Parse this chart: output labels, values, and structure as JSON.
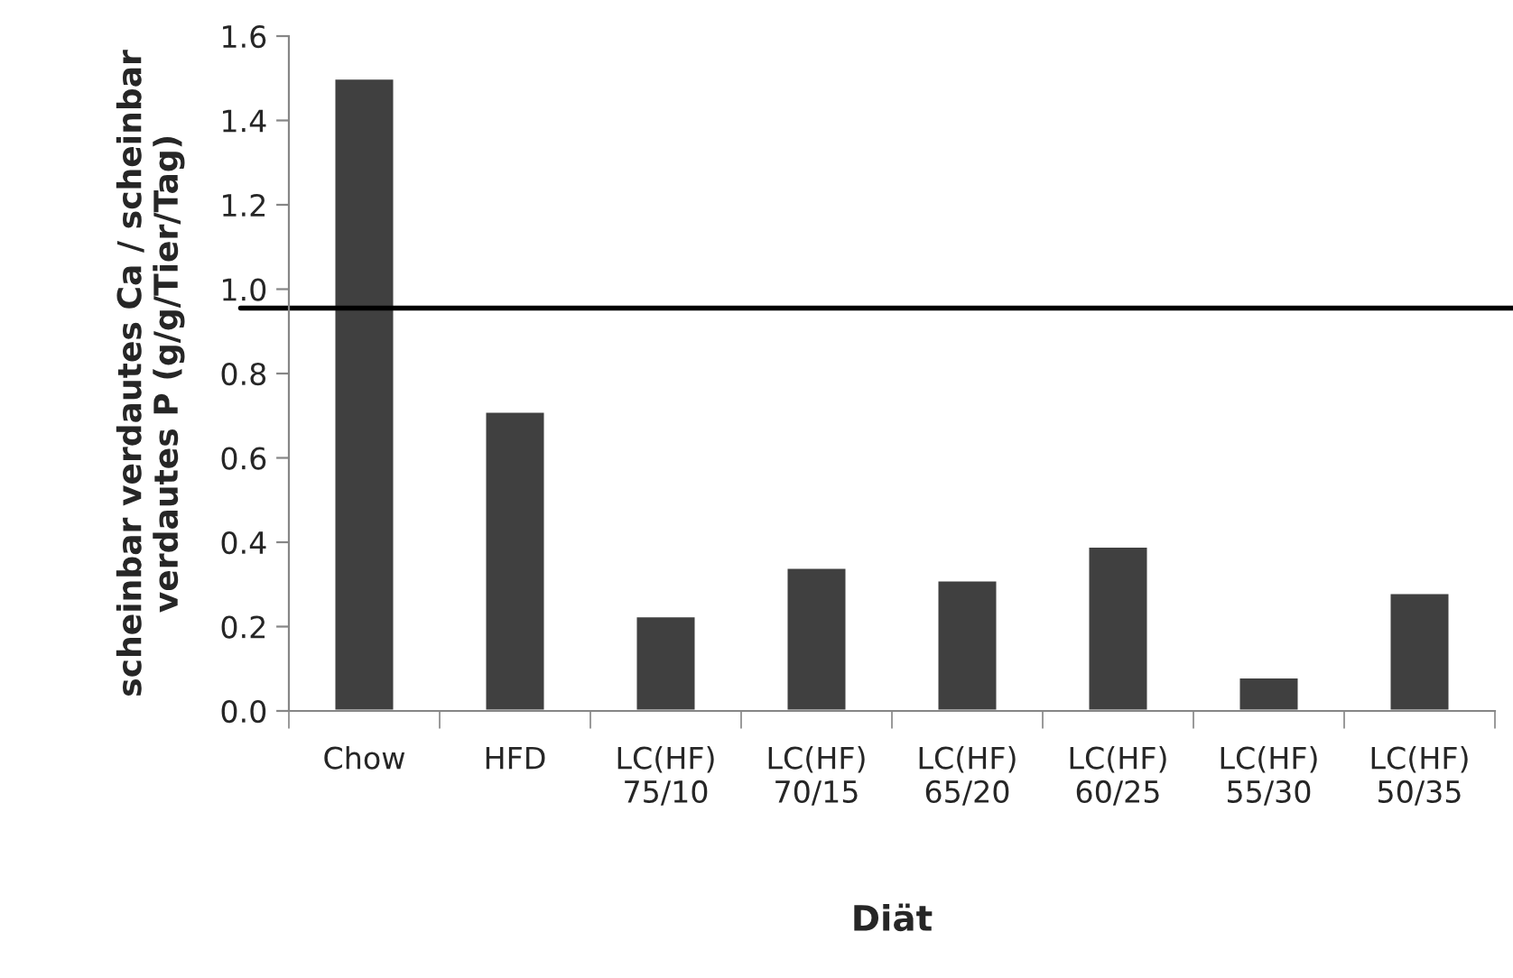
{
  "chart_data": {
    "type": "bar",
    "categories": [
      "Chow",
      "HFD",
      "LC(HF)\n75/10",
      "LC(HF)\n70/15",
      "LC(HF)\n65/20",
      "LC(HF)\n60/25",
      "LC(HF)\n55/30",
      "LC(HF)\n50/35"
    ],
    "values": [
      1.5,
      0.71,
      0.225,
      0.34,
      0.31,
      0.39,
      0.08,
      0.28
    ],
    "color": "#404040",
    "xlabel": "Diät",
    "ylabel": "scheinbar verdautes Ca / scheinbar\nverdautes P (g/g/Tier/Tag)",
    "ylim": [
      0,
      1.6
    ],
    "yticks": [
      {
        "value": 0,
        "label": "0.0"
      },
      {
        "value": 0.2,
        "label": "0.2"
      },
      {
        "value": 0.4,
        "label": "0.4"
      },
      {
        "value": 0.6,
        "label": "0.6"
      },
      {
        "value": 0.8,
        "label": "0.8"
      },
      {
        "value": 1.0,
        "label": "1.0"
      },
      {
        "value": 1.2,
        "label": "1.2"
      },
      {
        "value": 1.4,
        "label": "1.4"
      },
      {
        "value": 1.6,
        "label": "1.6"
      }
    ],
    "ref_lines": [
      {
        "axis": "y",
        "value": 0.955,
        "color": "#000000"
      }
    ],
    "grid": false,
    "legend": false
  }
}
